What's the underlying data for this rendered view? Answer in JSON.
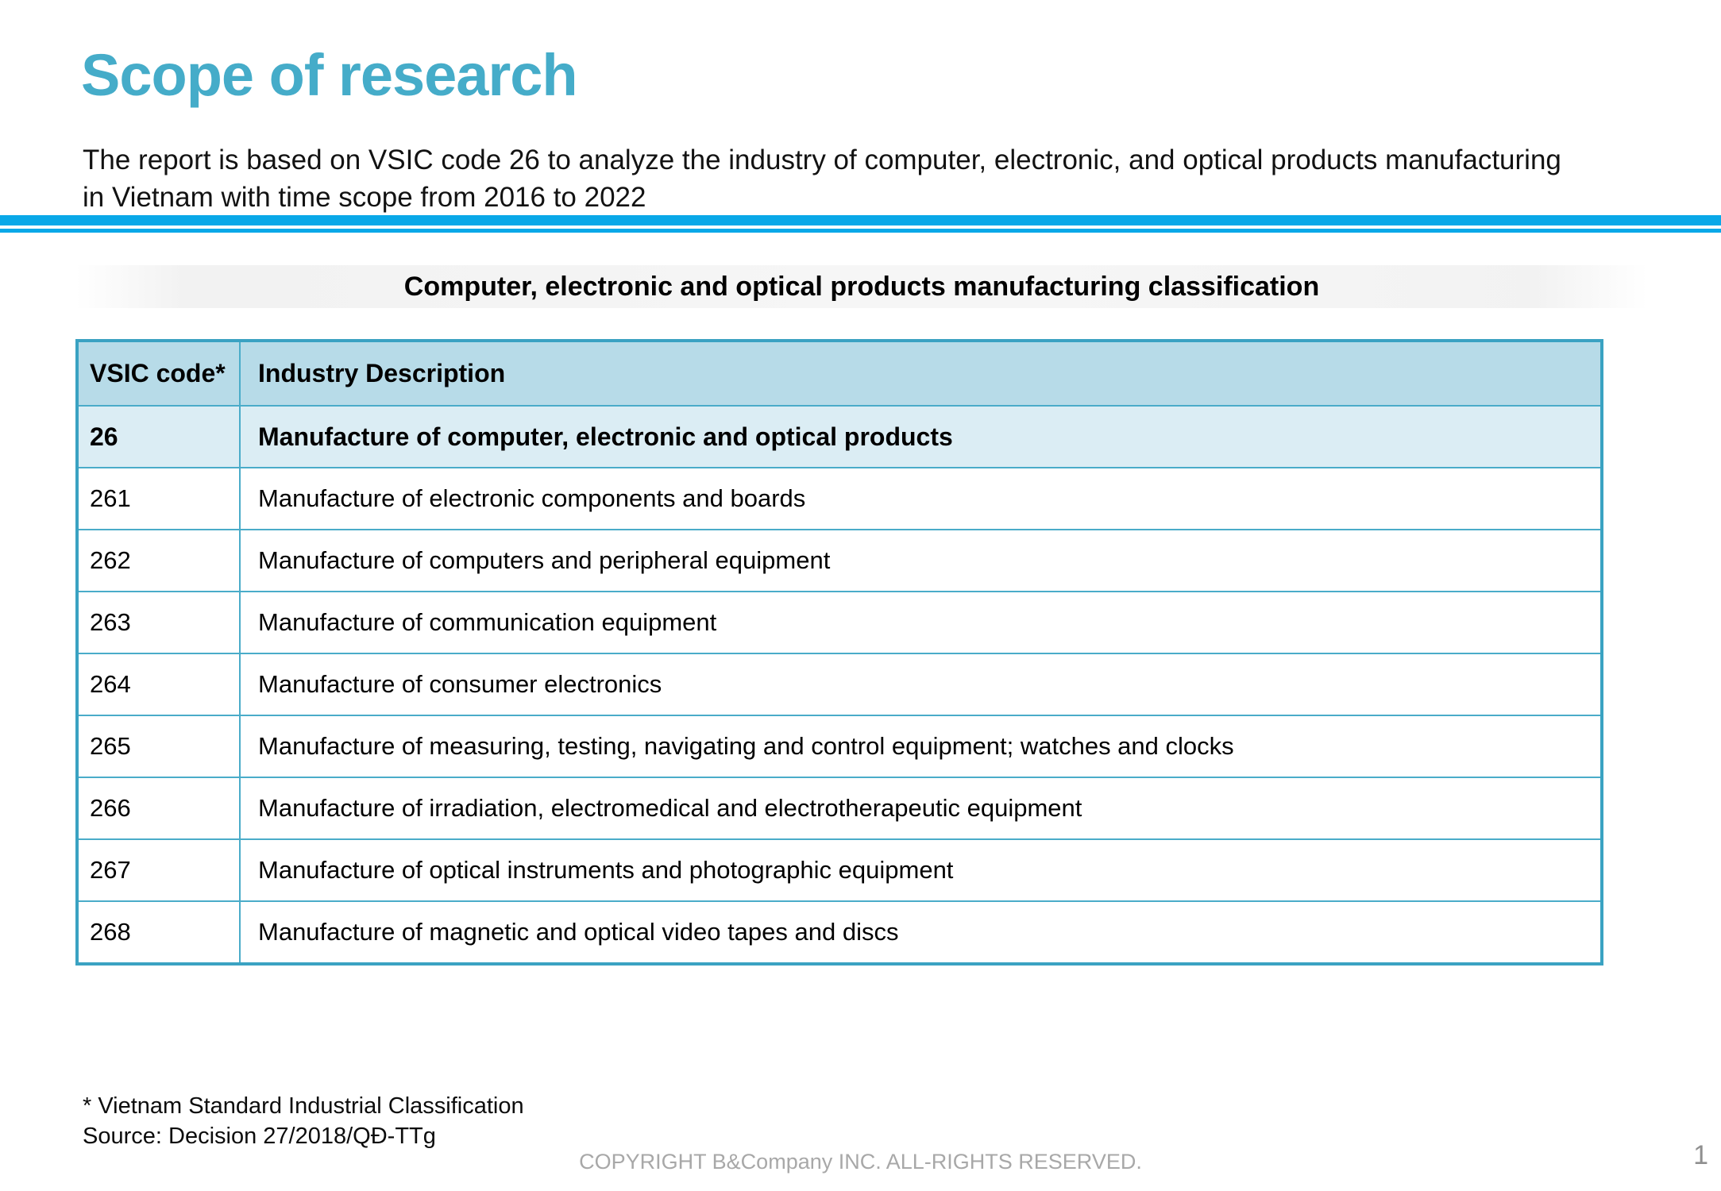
{
  "slide": {
    "title": "Scope of research",
    "intro": {
      "line1": "The report is based on VSIC code 26 to analyze the industry of computer, electronic, and optical products manufacturing",
      "line2": "in Vietnam with time scope from 2016 to 2022"
    }
  },
  "table": {
    "caption": "Computer, electronic and optical products manufacturing classification",
    "header": {
      "col1": "VSIC code*",
      "col2": "Industry Description"
    },
    "rows": [
      {
        "code": "26",
        "desc": "Manufacture of computer, electronic and optical products"
      },
      {
        "code": "261",
        "desc": "Manufacture of electronic components and boards"
      },
      {
        "code": "262",
        "desc": "Manufacture of computers and peripheral equipment"
      },
      {
        "code": "263",
        "desc": "Manufacture of communication equipment"
      },
      {
        "code": "264",
        "desc": "Manufacture of consumer electronics"
      },
      {
        "code": "265",
        "desc": "Manufacture of measuring, testing, navigating and control equipment; watches and clocks"
      },
      {
        "code": "266",
        "desc": "Manufacture of irradiation, electromedical and electrotherapeutic equipment"
      },
      {
        "code": "267",
        "desc": "Manufacture of optical instruments and photographic equipment"
      },
      {
        "code": "268",
        "desc": "Manufacture of magnetic and optical video tapes and discs"
      }
    ]
  },
  "footer": {
    "footnote": "* Vietnam Standard Industrial Classification",
    "source": "Source: Decision 27/2018/QĐ-TTg",
    "copyright": "COPYRIGHT B&Company INC. ALL-RIGHTS RESERVED.",
    "page_number": "1"
  },
  "colors": {
    "title_teal": "#45acc9",
    "divider_blue": "#09a8e8",
    "table_border_teal": "#4aacc9",
    "header_row_bg": "#b7dbe8",
    "highlight_row_bg": "#dbedf4",
    "muted_gray": "#a8a8a8"
  }
}
